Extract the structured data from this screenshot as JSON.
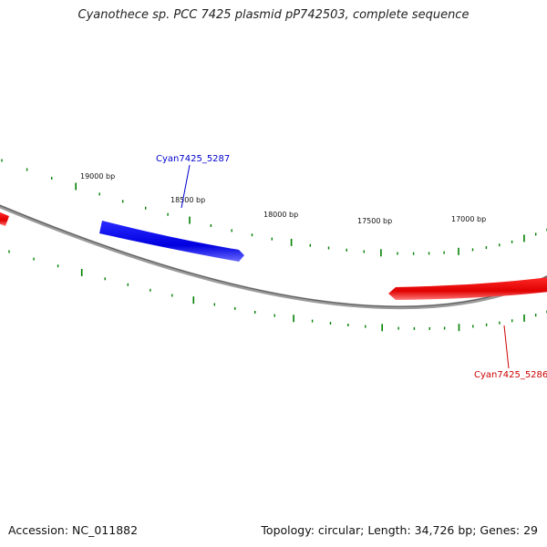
{
  "title": "Cyanothece sp. PCC 7425 plasmid pP742503, complete sequence",
  "accession": "Accession: NC_011882",
  "summary": "Topology: circular; Length: 34,726 bp; Genes: 29",
  "scale_labels": [
    "19000 bp",
    "18500 bp",
    "18000 bp",
    "17500 bp",
    "17000 bp"
  ],
  "genes": [
    {
      "name": "Cyan7425_5287",
      "color": "#0000cc"
    },
    {
      "name": "Cyan7425_5286",
      "color": "#cc0000"
    }
  ],
  "colors": {
    "backbone": "#808080",
    "tick": "#008000",
    "forward_gene": "#1a1aff",
    "reverse_gene": "#ff1a1a"
  }
}
